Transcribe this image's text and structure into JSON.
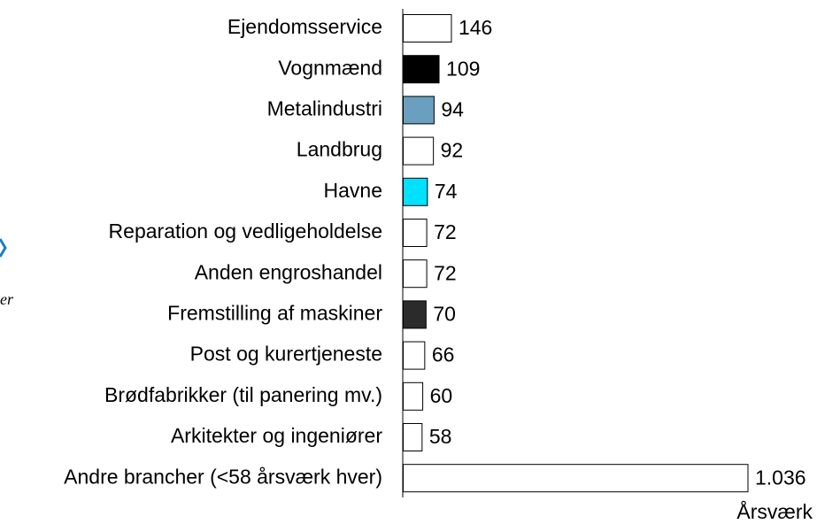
{
  "chart_data": {
    "type": "bar",
    "orientation": "horizontal",
    "categories": [
      "Ejendomsservice",
      "Vognmænd",
      "Metalindustri",
      "Landbrug",
      "Havne",
      "Reparation og vedligeholdelse",
      "Anden engroshandel",
      "Fremstilling af maskiner",
      "Post og kurertjeneste",
      "Brødfabrikker (til panering mv.)",
      "Arkitekter og ingeniører",
      "Andre brancher (<58 årsværk hver)"
    ],
    "values": [
      146,
      109,
      94,
      92,
      74,
      72,
      72,
      70,
      66,
      60,
      58,
      1036
    ],
    "value_labels": [
      "146",
      "109",
      "94",
      "92",
      "74",
      "72",
      "72",
      "70",
      "66",
      "60",
      "58",
      "1.036"
    ],
    "colors": [
      "#ffffff",
      "#000000",
      "#6a9fbf",
      "#ffffff",
      "#00e1ff",
      "#ffffff",
      "#ffffff",
      "#2b2b2b",
      "#ffffff",
      "#ffffff",
      "#ffffff",
      "#ffffff"
    ],
    "x_label": "Årsværk",
    "xlim": [
      0,
      1036
    ]
  },
  "logo_fragment": "er"
}
